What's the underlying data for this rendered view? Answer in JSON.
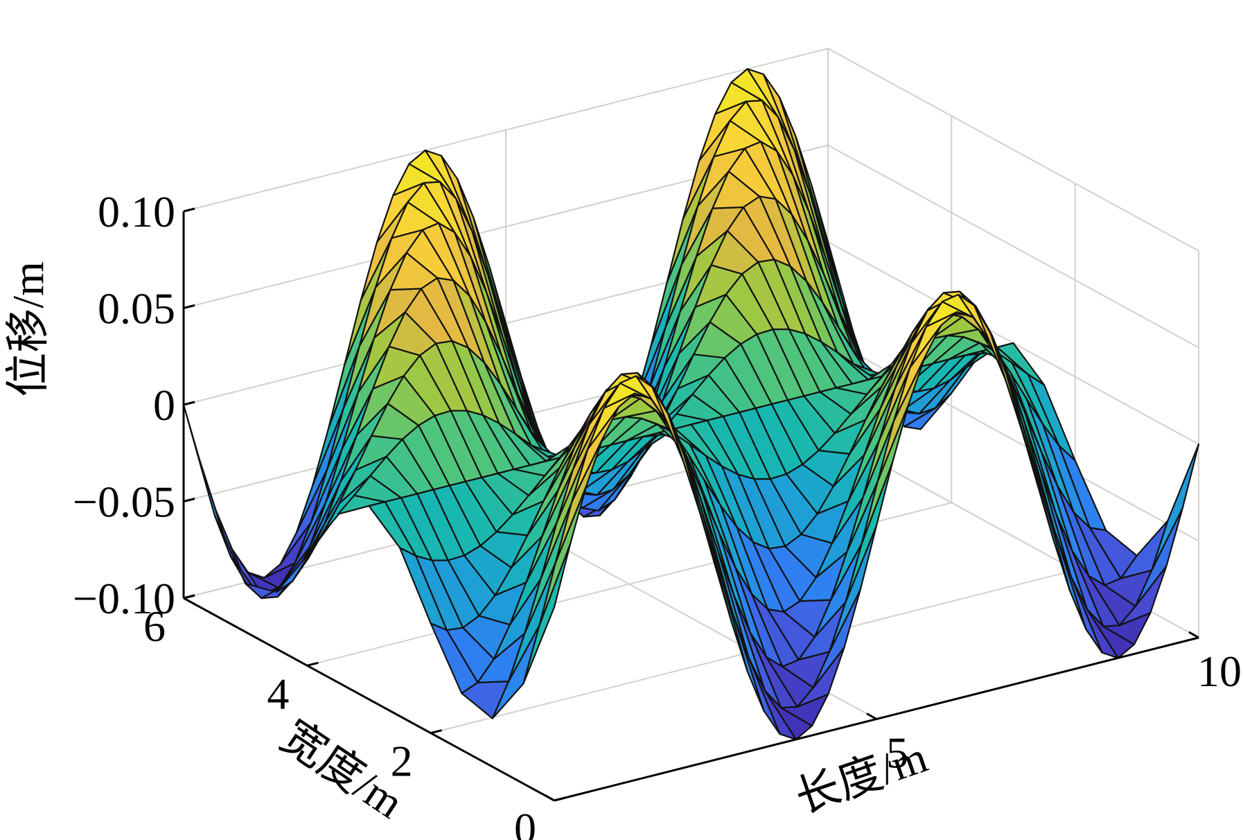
{
  "chart_data": {
    "type": "surface",
    "title": "",
    "xlabel": "长度/m",
    "ylabel": "宽度/m",
    "zlabel": "位移/m",
    "xlim": [
      0,
      10
    ],
    "ylim": [
      0,
      6
    ],
    "zlim": [
      -0.1,
      0.1
    ],
    "x_ticks": [
      5,
      10
    ],
    "x_tick_labels": [
      "5",
      "10"
    ],
    "y_ticks": [
      0,
      2,
      4,
      6
    ],
    "y_tick_labels": [
      "0",
      "2",
      "4",
      "6"
    ],
    "z_ticks": [
      -0.1,
      -0.05,
      0,
      0.05,
      0.1
    ],
    "z_tick_labels": [
      "−0.10",
      "−0.05",
      "0",
      "0.05",
      "0.10"
    ],
    "grid": true,
    "colormap": "parula",
    "colormap_stops": [
      "#3e26a8",
      "#4751d8",
      "#2f7ff1",
      "#1ea0d6",
      "#18b8b0",
      "#4cc47f",
      "#9dc843",
      "#e3b943",
      "#f9cf3a",
      "#f0ed22"
    ],
    "surface": {
      "formula": "z = 0.1 * sin(2*pi*x/5 - 2*pi*y/6) * cos(pi*y/6)",
      "x_samples": 41,
      "y_samples": 13,
      "amplitude": 0.1,
      "x_wavelength": 5,
      "y_wavelength": 6
    }
  }
}
